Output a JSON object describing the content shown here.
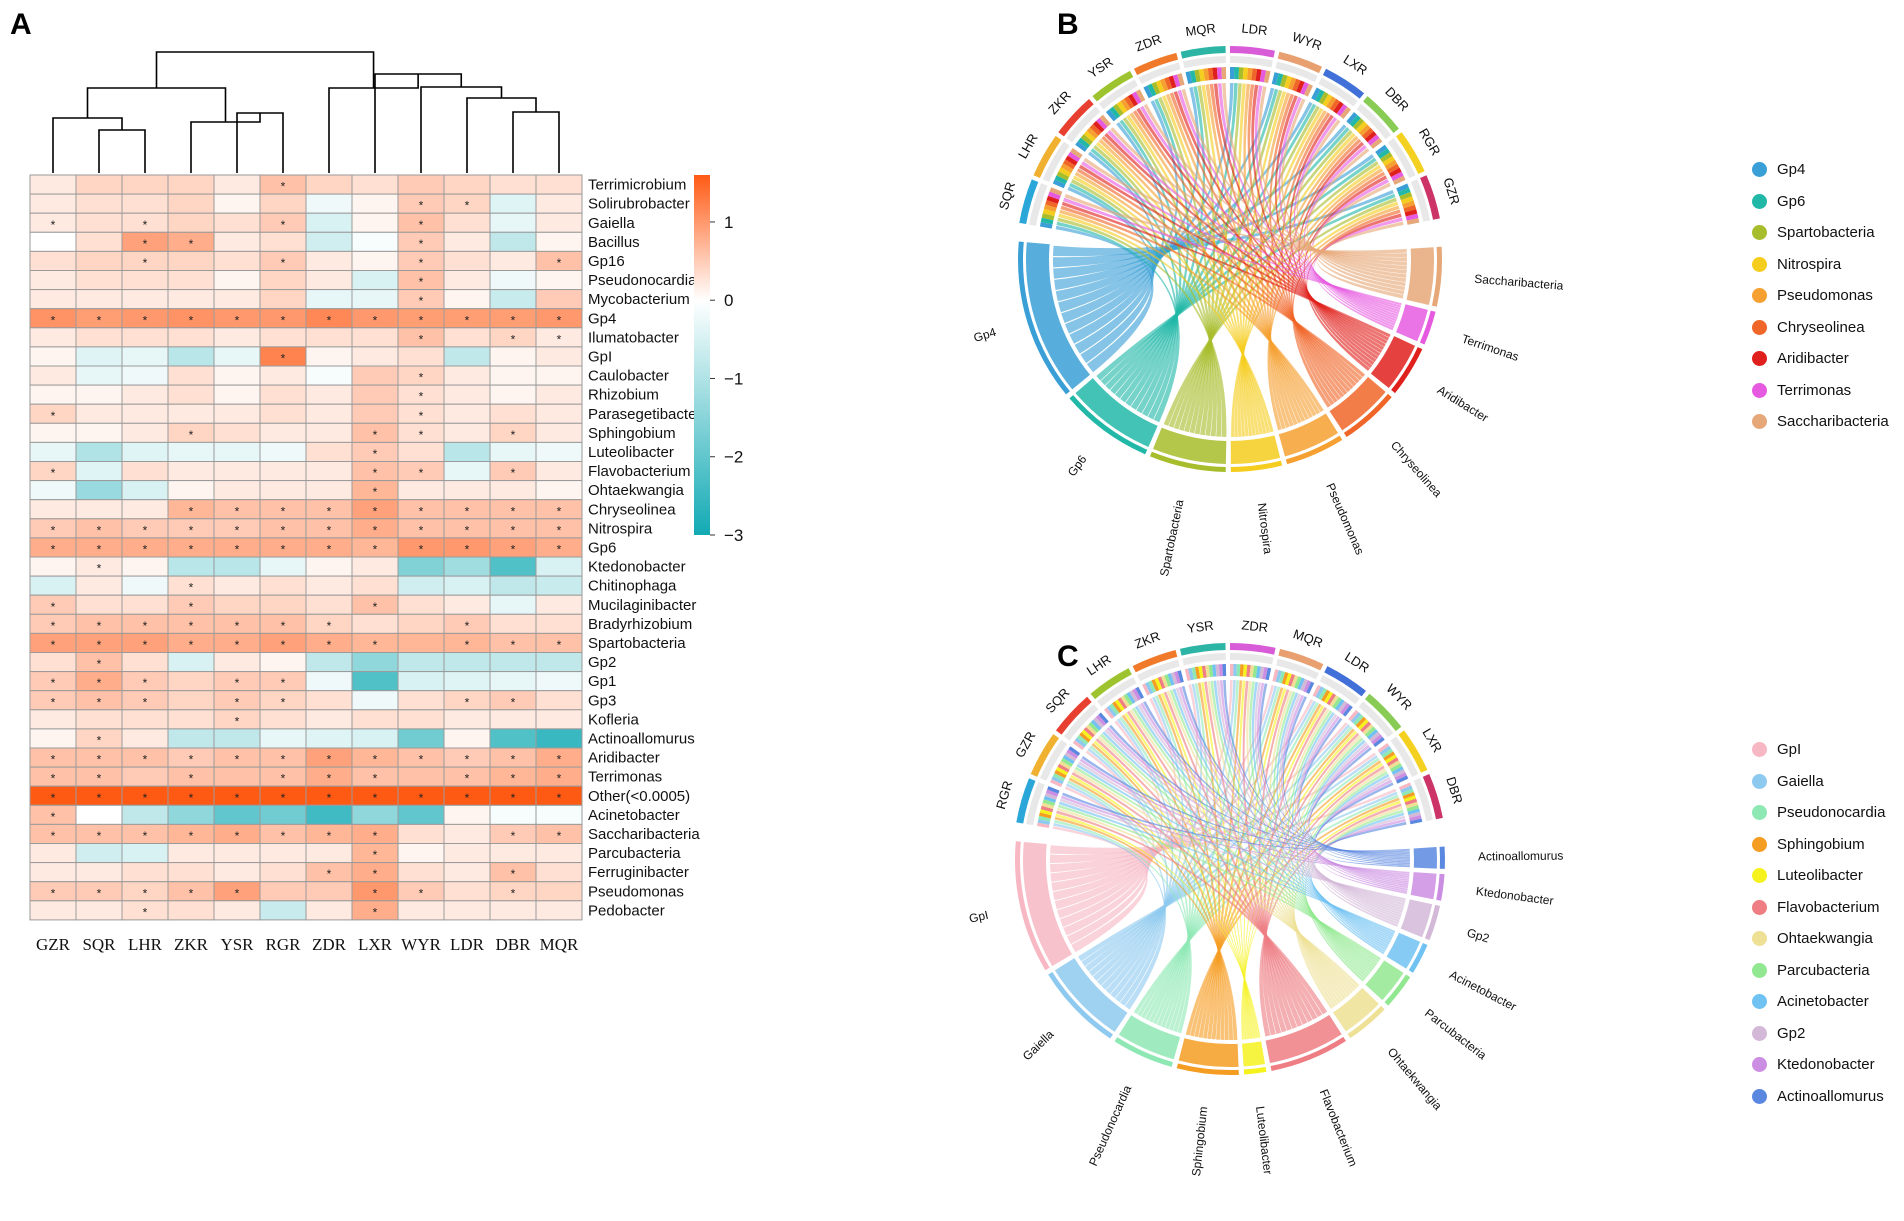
{
  "panels": {
    "a": {
      "label": "A"
    },
    "b": {
      "label": "B"
    },
    "c": {
      "label": "C"
    }
  },
  "colors": {
    "scale_low": "#12aab4",
    "scale_mid": "#ffffff",
    "scale_high": "#ff5a14",
    "grid": "#9a9a9a"
  },
  "chart_data": [
    {
      "type": "heatmap",
      "title": "",
      "columns": [
        "GZR",
        "SQR",
        "LHR",
        "ZKR",
        "YSR",
        "RGR",
        "ZDR",
        "LXR",
        "WYR",
        "LDR",
        "DBR",
        "MQR"
      ],
      "rows": [
        "Terrimicrobium",
        "Solirubrobacter",
        "Gaiella",
        "Bacillus",
        "Gp16",
        "Pseudonocardia",
        "Mycobacterium",
        "Gp4",
        "Ilumatobacter",
        "GpI",
        "Caulobacter",
        "Rhizobium",
        "Parasegetibacter",
        "Sphingobium",
        "Luteolibacter",
        "Flavobacterium",
        "Ohtaekwangia",
        "Chryseolinea",
        "Nitrospira",
        "Gp6",
        "Ktedonobacter",
        "Chitinophaga",
        "Mucilaginibacter",
        "Bradyrhizobium",
        "Spartobacteria",
        "Gp2",
        "Gp1",
        "Gp3",
        "Kofleria",
        "Actinoallomurus",
        "Aridibacter",
        "Terrimonas",
        "Other(<0.0005)",
        "Acinetobacter",
        "Saccharibacteria",
        "Parcubacteria",
        "Ferruginibacter",
        "Pseudomonas",
        "Pedobacter"
      ],
      "colorbar": {
        "min": -3,
        "max": 1.6,
        "ticks": [
          "1",
          "0",
          "−1",
          "−2",
          "−3"
        ],
        "tick_values": [
          1,
          0,
          -1,
          -2,
          -3
        ]
      },
      "values": [
        [
          0.2,
          0.4,
          0.4,
          0.4,
          0.2,
          0.6,
          0.4,
          0.3,
          0.5,
          0.4,
          0.3,
          0.3
        ],
        [
          0.2,
          0.3,
          0.3,
          0.4,
          0.1,
          0.4,
          -0.2,
          0.1,
          0.5,
          0.4,
          -0.4,
          0.2
        ],
        [
          0.2,
          0.3,
          0.3,
          0.4,
          0.3,
          0.5,
          -0.5,
          0.1,
          0.6,
          0.3,
          -0.3,
          0.2
        ],
        [
          0,
          0.3,
          0.9,
          0.8,
          0.2,
          0.3,
          -0.6,
          -0.1,
          0.5,
          0.2,
          -0.8,
          0.1
        ],
        [
          0.3,
          0.4,
          0.4,
          0.4,
          0.3,
          0.5,
          0.2,
          0.1,
          0.5,
          0.3,
          0.2,
          0.6
        ],
        [
          0.2,
          0.3,
          0.3,
          0.3,
          0.1,
          0.4,
          0.2,
          -0.5,
          0.6,
          0.2,
          -0.2,
          0.1
        ],
        [
          0.2,
          0.2,
          0.2,
          0.2,
          0.2,
          0.4,
          -0.3,
          -0.3,
          0.5,
          0.1,
          -0.7,
          0.5
        ],
        [
          1.05,
          0.95,
          1.0,
          1.05,
          1.0,
          1.0,
          1.15,
          1.0,
          0.95,
          0.95,
          0.95,
          1.0
        ],
        [
          0.2,
          0.3,
          0.3,
          0.3,
          0.2,
          0.3,
          0.3,
          0.3,
          0.6,
          0.3,
          0.4,
          0.2
        ],
        [
          0.1,
          -0.4,
          -0.3,
          -0.9,
          -0.3,
          1.2,
          0.1,
          0.2,
          0.3,
          -0.8,
          0.1,
          0.2
        ],
        [
          0.2,
          -0.3,
          -0.2,
          0.3,
          0.1,
          0.2,
          -0.1,
          0.5,
          0.4,
          0.2,
          0.1,
          0.1
        ],
        [
          0.1,
          0.1,
          0.2,
          0.3,
          0.1,
          0.3,
          0.2,
          0.5,
          0.3,
          0.2,
          0.1,
          0.2
        ],
        [
          0.4,
          0.2,
          0.2,
          0.2,
          0.2,
          0.3,
          0.2,
          0.5,
          0.3,
          0.2,
          0.3,
          0.2
        ],
        [
          0.1,
          0.1,
          0.2,
          0.4,
          0.3,
          0.2,
          0.2,
          0.6,
          0.3,
          0.2,
          0.4,
          0.2
        ],
        [
          -0.3,
          -1.0,
          -0.4,
          -0.3,
          -0.3,
          -0.2,
          0.3,
          0.5,
          0.3,
          -0.9,
          -0.3,
          -0.2
        ],
        [
          0.4,
          -0.4,
          0.3,
          0.2,
          0.2,
          0.2,
          0.2,
          0.6,
          0.5,
          -0.3,
          0.5,
          0.2
        ],
        [
          -0.2,
          -1.3,
          -0.5,
          0.1,
          0.2,
          0.2,
          0.2,
          0.7,
          0.2,
          0.2,
          0.2,
          0.1
        ],
        [
          0.2,
          0.2,
          0.2,
          0.7,
          0.6,
          0.6,
          0.6,
          0.9,
          0.6,
          0.6,
          0.6,
          0.6
        ],
        [
          0.5,
          0.6,
          0.5,
          0.5,
          0.5,
          0.6,
          0.6,
          0.8,
          0.6,
          0.6,
          0.6,
          0.6
        ],
        [
          0.8,
          0.8,
          0.8,
          0.8,
          0.8,
          0.8,
          0.8,
          0.7,
          1.0,
          1.0,
          0.9,
          0.8
        ],
        [
          0.1,
          0.2,
          0.1,
          -0.9,
          -0.9,
          -0.3,
          0.1,
          0.2,
          -1.6,
          -1.2,
          -2.2,
          -0.5
        ],
        [
          -0.5,
          0.2,
          -0.2,
          0.3,
          0.2,
          0.3,
          0.2,
          0.3,
          -0.6,
          -0.5,
          -0.8,
          -0.7
        ],
        [
          0.5,
          0.3,
          0.3,
          0.5,
          0.4,
          0.4,
          0.3,
          0.6,
          0.3,
          0.2,
          -0.3,
          0.2
        ],
        [
          0.5,
          0.6,
          0.6,
          0.6,
          0.6,
          0.6,
          0.4,
          0.3,
          0.4,
          0.5,
          0.3,
          0.3
        ],
        [
          0.9,
          0.9,
          0.9,
          0.8,
          0.8,
          0.9,
          0.8,
          0.7,
          0.7,
          0.7,
          0.6,
          0.6
        ],
        [
          0.3,
          0.6,
          0.3,
          -0.5,
          0.2,
          0.1,
          -0.8,
          -1.4,
          -0.8,
          -0.8,
          -0.8,
          -0.8
        ],
        [
          0.5,
          0.8,
          0.5,
          0.4,
          0.5,
          0.5,
          -0.2,
          -2.2,
          -0.5,
          -0.4,
          -0.3,
          -0.2
        ],
        [
          0.5,
          0.6,
          0.5,
          0.4,
          0.5,
          0.4,
          0.3,
          -0.2,
          0.3,
          0.4,
          0.5,
          0.3
        ],
        [
          0.2,
          0.3,
          0.3,
          0.3,
          0.4,
          0.3,
          0.2,
          0.3,
          0.3,
          0.2,
          0.2,
          0.2
        ],
        [
          0.1,
          0.4,
          0.2,
          -0.8,
          -0.8,
          -0.3,
          -0.4,
          -0.5,
          -1.8,
          0.1,
          -2.2,
          -2.5
        ],
        [
          0.6,
          0.6,
          0.6,
          0.5,
          0.6,
          0.6,
          0.9,
          0.7,
          0.6,
          0.5,
          0.6,
          0.8
        ],
        [
          0.6,
          0.6,
          0.5,
          0.6,
          0.6,
          0.6,
          0.8,
          0.6,
          0.6,
          0.6,
          0.7,
          0.8
        ],
        [
          1.6,
          1.6,
          1.6,
          1.6,
          1.6,
          1.6,
          1.6,
          1.6,
          1.6,
          1.6,
          1.6,
          1.6
        ],
        [
          0.6,
          0,
          -0.8,
          -1.4,
          -2.0,
          -1.8,
          -2.4,
          -1.4,
          -2.0,
          0.1,
          -0.1,
          -0.1
        ],
        [
          0.6,
          0.6,
          0.6,
          0.7,
          0.8,
          0.6,
          0.7,
          0.8,
          0.3,
          0.2,
          0.5,
          0.6
        ],
        [
          0.2,
          -0.6,
          -0.5,
          0.2,
          0.2,
          0.2,
          0.2,
          0.7,
          0.1,
          0.2,
          0.2,
          0.2
        ],
        [
          0.2,
          0.2,
          0.3,
          0.3,
          0.2,
          0.3,
          0.6,
          0.8,
          0.3,
          0.2,
          0.6,
          0.3
        ],
        [
          0.5,
          0.5,
          0.4,
          0.6,
          0.9,
          0.5,
          0.5,
          1.0,
          0.5,
          0.3,
          0.4,
          0.4
        ],
        [
          0.2,
          0.2,
          0.3,
          0.3,
          0.2,
          -0.7,
          0.2,
          0.8,
          0.2,
          0.2,
          0.2,
          0.2
        ]
      ],
      "significance": [
        [
          0,
          0,
          0,
          0,
          0,
          1,
          0,
          0,
          0,
          0,
          0,
          0
        ],
        [
          0,
          0,
          0,
          0,
          0,
          0,
          0,
          0,
          1,
          1,
          0,
          0
        ],
        [
          1,
          0,
          1,
          0,
          0,
          1,
          0,
          0,
          1,
          0,
          0,
          0
        ],
        [
          0,
          0,
          1,
          1,
          0,
          0,
          0,
          0,
          1,
          0,
          0,
          0
        ],
        [
          0,
          0,
          1,
          0,
          0,
          1,
          0,
          0,
          1,
          0,
          0,
          1
        ],
        [
          0,
          0,
          0,
          0,
          0,
          0,
          0,
          0,
          1,
          0,
          0,
          0
        ],
        [
          0,
          0,
          0,
          0,
          0,
          0,
          0,
          0,
          1,
          0,
          0,
          0
        ],
        [
          1,
          1,
          1,
          1,
          1,
          1,
          1,
          1,
          1,
          1,
          1,
          1
        ],
        [
          0,
          0,
          0,
          0,
          0,
          0,
          0,
          0,
          1,
          0,
          1,
          1
        ],
        [
          0,
          0,
          0,
          0,
          0,
          1,
          0,
          0,
          0,
          0,
          0,
          0
        ],
        [
          0,
          0,
          0,
          0,
          0,
          0,
          0,
          0,
          1,
          0,
          0,
          0
        ],
        [
          0,
          0,
          0,
          0,
          0,
          0,
          0,
          0,
          1,
          0,
          0,
          0
        ],
        [
          1,
          0,
          0,
          0,
          0,
          0,
          0,
          0,
          1,
          0,
          0,
          0
        ],
        [
          0,
          0,
          0,
          1,
          0,
          0,
          0,
          1,
          1,
          0,
          1,
          0
        ],
        [
          0,
          0,
          0,
          0,
          0,
          0,
          0,
          1,
          0,
          0,
          0,
          0
        ],
        [
          1,
          0,
          0,
          0,
          0,
          0,
          0,
          1,
          1,
          0,
          1,
          0
        ],
        [
          0,
          0,
          0,
          0,
          0,
          0,
          0,
          1,
          0,
          0,
          0,
          0
        ],
        [
          0,
          0,
          0,
          1,
          1,
          1,
          1,
          1,
          1,
          1,
          1,
          1
        ],
        [
          1,
          1,
          1,
          1,
          1,
          1,
          1,
          1,
          1,
          1,
          1,
          1
        ],
        [
          1,
          1,
          1,
          1,
          1,
          1,
          1,
          1,
          1,
          1,
          1,
          1
        ],
        [
          0,
          1,
          0,
          0,
          0,
          0,
          0,
          0,
          0,
          0,
          0,
          0
        ],
        [
          0,
          0,
          0,
          1,
          0,
          0,
          0,
          0,
          0,
          0,
          0,
          0
        ],
        [
          1,
          0,
          0,
          1,
          0,
          0,
          0,
          1,
          0,
          0,
          0,
          0
        ],
        [
          1,
          1,
          1,
          1,
          1,
          1,
          1,
          0,
          0,
          1,
          0,
          0
        ],
        [
          1,
          1,
          1,
          1,
          1,
          1,
          1,
          1,
          0,
          1,
          1,
          1
        ],
        [
          0,
          1,
          0,
          0,
          0,
          0,
          0,
          0,
          0,
          0,
          0,
          0
        ],
        [
          1,
          1,
          1,
          0,
          1,
          1,
          0,
          0,
          0,
          0,
          0,
          0
        ],
        [
          1,
          1,
          1,
          0,
          1,
          1,
          0,
          0,
          0,
          1,
          1,
          0
        ],
        [
          0,
          0,
          0,
          0,
          1,
          0,
          0,
          0,
          0,
          0,
          0,
          0
        ],
        [
          0,
          1,
          0,
          0,
          0,
          0,
          0,
          0,
          0,
          0,
          0,
          0
        ],
        [
          1,
          1,
          1,
          1,
          1,
          1,
          1,
          1,
          1,
          1,
          1,
          1
        ],
        [
          1,
          1,
          0,
          1,
          0,
          1,
          1,
          1,
          0,
          1,
          1,
          1
        ],
        [
          1,
          1,
          1,
          1,
          1,
          1,
          1,
          1,
          1,
          1,
          1,
          1
        ],
        [
          1,
          0,
          0,
          0,
          0,
          0,
          0,
          0,
          0,
          0,
          0,
          0
        ],
        [
          1,
          1,
          1,
          1,
          1,
          1,
          1,
          1,
          0,
          0,
          1,
          1
        ],
        [
          0,
          0,
          0,
          0,
          0,
          0,
          0,
          1,
          0,
          0,
          0,
          0
        ],
        [
          0,
          0,
          0,
          0,
          0,
          0,
          1,
          1,
          0,
          0,
          1,
          0
        ],
        [
          1,
          1,
          1,
          1,
          1,
          0,
          0,
          1,
          1,
          0,
          1,
          0
        ],
        [
          0,
          0,
          1,
          0,
          0,
          0,
          0,
          1,
          0,
          0,
          0,
          0
        ]
      ],
      "significance_mark": "*"
    },
    {
      "type": "chord",
      "samples": [
        "SQR",
        "LHR",
        "ZKR",
        "YSR",
        "ZDR",
        "MQR",
        "LDR",
        "WYR",
        "LXR",
        "DBR",
        "RGR",
        "GZR"
      ],
      "taxa": [
        {
          "name": "Gp4",
          "color": "#3a9fd6",
          "value": 95
        },
        {
          "name": "Gp6",
          "color": "#22b8a8",
          "value": 55
        },
        {
          "name": "Spartobacteria",
          "color": "#a8bd2c",
          "value": 45
        },
        {
          "name": "Nitrospira",
          "color": "#f5cd1e",
          "value": 30
        },
        {
          "name": "Pseudomonas",
          "color": "#f5a030",
          "value": 35
        },
        {
          "name": "Chryseolinea",
          "color": "#f06628",
          "value": 35
        },
        {
          "name": "Aridibacter",
          "color": "#e0201c",
          "value": 30
        },
        {
          "name": "Terrimonas",
          "color": "#e65ae0",
          "value": 20
        },
        {
          "name": "Saccharibacteria",
          "color": "#e6a878",
          "value": 35
        }
      ]
    },
    {
      "type": "chord",
      "samples": [
        "RGR",
        "GZR",
        "SQR",
        "LHR",
        "ZKR",
        "YSR",
        "ZDR",
        "MQR",
        "LDR",
        "WYR",
        "LXR",
        "DBR"
      ],
      "taxa": [
        {
          "name": "GpI",
          "color": "#f7b7c3",
          "value": 30
        },
        {
          "name": "Gaiella",
          "color": "#8ec9ef",
          "value": 20
        },
        {
          "name": "Pseudonocardia",
          "color": "#8ee8b4",
          "value": 14
        },
        {
          "name": "Sphingobium",
          "color": "#f59d22",
          "value": 14
        },
        {
          "name": "Luteolibacter",
          "color": "#f5f21e",
          "value": 5
        },
        {
          "name": "Flavobacterium",
          "color": "#ee7e84",
          "value": 18
        },
        {
          "name": "Ohtaekwangia",
          "color": "#eee094",
          "value": 10
        },
        {
          "name": "Parcubacteria",
          "color": "#92e890",
          "value": 8
        },
        {
          "name": "Acinetobacter",
          "color": "#70c2f2",
          "value": 7
        },
        {
          "name": "Gp2",
          "color": "#d4b8d8",
          "value": 8
        },
        {
          "name": "Ktedonobacter",
          "color": "#cc8ee2",
          "value": 6
        },
        {
          "name": "Actinoallomurus",
          "color": "#5a88e0",
          "value": 5
        }
      ]
    }
  ]
}
